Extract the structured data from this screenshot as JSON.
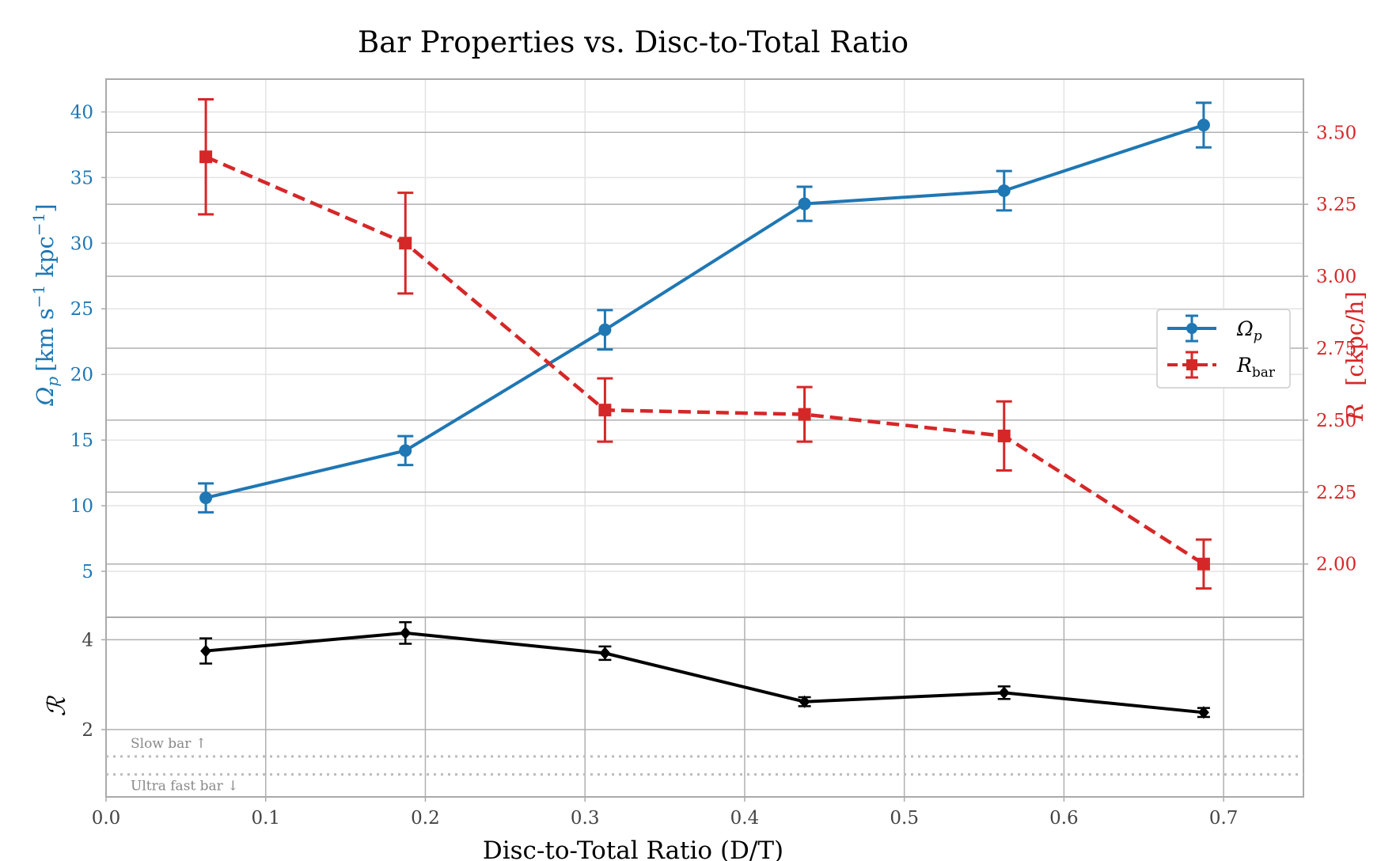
{
  "chart_data": [
    {
      "type": "line",
      "title": "Bar Properties vs. Disc-to-Total Ratio",
      "x": [
        0.0625,
        0.1875,
        0.3125,
        0.4375,
        0.5625,
        0.6875
      ],
      "xlim": [
        0.0,
        0.75
      ],
      "xticks": [
        "0.0",
        "0.1",
        "0.2",
        "0.3",
        "0.4",
        "0.5",
        "0.6",
        "0.7"
      ],
      "y_left": {
        "label_math": "Ω",
        "label_sub": "p",
        "label_rest": "[km s",
        "label_exp1": "−1",
        "label_mid": " kpc",
        "label_exp2": "−1",
        "label_end": "]",
        "color": "#1f77b4",
        "ylim": [
          1.5,
          42.5
        ],
        "ticks": [
          "5",
          "10",
          "15",
          "20",
          "25",
          "30",
          "35",
          "40"
        ]
      },
      "y_right": {
        "label_visible": "R",
        "label_unit": "[ckpc/h]",
        "color": "#d62728",
        "ylim": [
          1.815,
          3.685
        ],
        "ticks": [
          "2.00",
          "2.25",
          "2.50",
          "2.75",
          "3.00",
          "3.25",
          "3.50"
        ]
      },
      "series": [
        {
          "name": "Ω",
          "name_sub": "p",
          "axis": "left",
          "color": "#1f77b4",
          "marker": "circle",
          "linestyle": "solid",
          "values": [
            10.6,
            14.2,
            23.4,
            33.0,
            34.0,
            39.0
          ],
          "errors": [
            1.1,
            1.1,
            1.5,
            1.3,
            1.5,
            1.7
          ]
        },
        {
          "name": "R",
          "name_sub": "bar",
          "axis": "right",
          "color": "#d62728",
          "marker": "square",
          "linestyle": "dashed",
          "values": [
            3.415,
            3.115,
            2.535,
            2.52,
            2.445,
            2.0
          ],
          "errors": [
            0.2,
            0.175,
            0.11,
            0.095,
            0.12,
            0.085
          ]
        }
      ],
      "legend": "center-right",
      "grid": true
    },
    {
      "type": "line",
      "xlabel": "Disc-to-Total Ratio (D/T)",
      "ylabel": "ℛ",
      "ylim": [
        0.5,
        4.5
      ],
      "yticks": [
        "2",
        "4"
      ],
      "series": [
        {
          "color": "#000000",
          "marker": "diamond",
          "values": [
            3.75,
            4.15,
            3.7,
            2.62,
            2.82,
            2.38
          ],
          "errors": [
            0.28,
            0.24,
            0.15,
            0.1,
            0.14,
            0.1
          ]
        }
      ],
      "reference_lines": [
        {
          "value": 1.4,
          "label": "Slow bar ↑"
        },
        {
          "value": 1.0,
          "label": "Ultra fast bar ↓"
        }
      ],
      "grid": true
    }
  ]
}
